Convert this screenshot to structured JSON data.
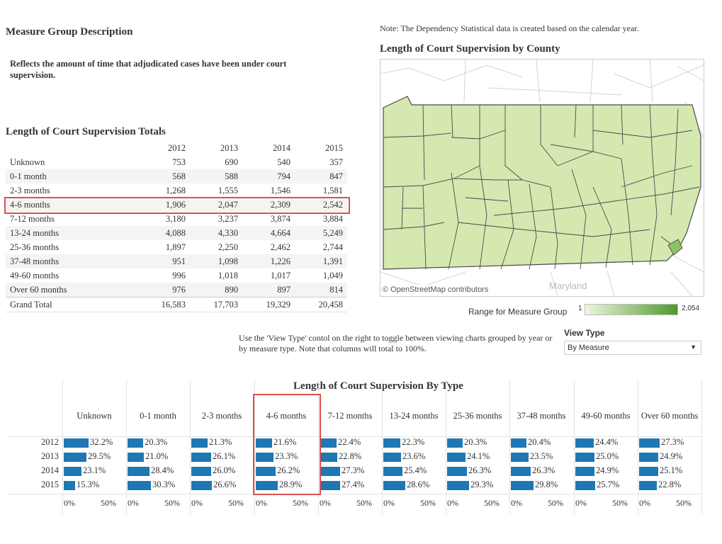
{
  "description": {
    "heading": "Measure Group Description",
    "text": "Reflects the amount of time that adjudicated cases have been under court supervision."
  },
  "note": "Note: The Dependency Statistical data is created based on the calendar year.",
  "totals": {
    "title": "Length of Court Supervision Totals",
    "years": [
      "2012",
      "2013",
      "2014",
      "2015"
    ],
    "rows": [
      {
        "label": "Unknown",
        "values": [
          "753",
          "690",
          "540",
          "357"
        ]
      },
      {
        "label": "0-1 month",
        "values": [
          "568",
          "588",
          "794",
          "847"
        ]
      },
      {
        "label": "2-3 months",
        "values": [
          "1,268",
          "1,555",
          "1,546",
          "1,581"
        ]
      },
      {
        "label": "4-6 months",
        "values": [
          "1,906",
          "2,047",
          "2,309",
          "2,542"
        ]
      },
      {
        "label": "7-12 months",
        "values": [
          "3,180",
          "3,237",
          "3,874",
          "3,884"
        ]
      },
      {
        "label": "13-24 months",
        "values": [
          "4,088",
          "4,330",
          "4,664",
          "5,249"
        ]
      },
      {
        "label": "25-36 months",
        "values": [
          "1,897",
          "2,250",
          "2,462",
          "2,744"
        ]
      },
      {
        "label": "37-48 months",
        "values": [
          "951",
          "1,098",
          "1,226",
          "1,391"
        ]
      },
      {
        "label": "49-60 months",
        "values": [
          "996",
          "1,018",
          "1,017",
          "1,049"
        ]
      },
      {
        "label": "Over 60 months",
        "values": [
          "976",
          "890",
          "897",
          "814"
        ]
      }
    ],
    "grand_total": {
      "label": "Grand Total",
      "values": [
        "16,583",
        "17,703",
        "19,329",
        "20,458"
      ]
    }
  },
  "map": {
    "title": "Length of Court Supervision by County",
    "attribution": "© OpenStreetMap contributors",
    "state_label": "Maryland",
    "legend_label": "Range for  Measure Group",
    "legend_min": "1",
    "legend_max": "2,054",
    "colors": {
      "fill": "#d4e8b0",
      "highlight": "#8cc463",
      "border": "#4a4a4a"
    }
  },
  "instructions": "Use the 'View Type' contol on the right to toggle between viewing charts grouped by year or by measure type.  Note that columns will total to 100%.",
  "view_type": {
    "label": "View Type",
    "selected": "By Measure"
  },
  "chart_data": {
    "type": "bar",
    "title": "Length of Court Supervision By Type",
    "categories": [
      "Unknown",
      "0-1 month",
      "2-3 months",
      "4-6 months",
      "7-12 months",
      "13-24 months",
      "25-36 months",
      "37-48 months",
      "49-60 months",
      "Over 60 months"
    ],
    "years": [
      "2012",
      "2013",
      "2014",
      "2015"
    ],
    "values": [
      [
        32.2,
        29.5,
        23.1,
        15.3
      ],
      [
        20.3,
        21.0,
        28.4,
        30.3
      ],
      [
        21.3,
        26.1,
        26.0,
        26.6
      ],
      [
        21.6,
        23.3,
        26.2,
        28.9
      ],
      [
        22.4,
        22.8,
        27.3,
        27.4
      ],
      [
        22.3,
        23.6,
        25.4,
        28.6
      ],
      [
        20.3,
        24.1,
        26.3,
        29.3
      ],
      [
        20.4,
        23.5,
        26.3,
        29.8
      ],
      [
        24.4,
        25.0,
        24.9,
        25.7
      ],
      [
        27.3,
        24.9,
        25.1,
        22.8
      ]
    ],
    "value_labels": [
      [
        "32.2%",
        "29.5%",
        "23.1%",
        "15.3%"
      ],
      [
        "20.3%",
        "21.0%",
        "28.4%",
        "30.3%"
      ],
      [
        "21.3%",
        "26.1%",
        "26.0%",
        "26.6%"
      ],
      [
        "21.6%",
        "23.3%",
        "26.2%",
        "28.9%"
      ],
      [
        "22.4%",
        "22.8%",
        "27.3%",
        "27.4%"
      ],
      [
        "22.3%",
        "23.6%",
        "25.4%",
        "28.6%"
      ],
      [
        "20.3%",
        "24.1%",
        "26.3%",
        "29.3%"
      ],
      [
        "20.4%",
        "23.5%",
        "26.3%",
        "29.8%"
      ],
      [
        "24.4%",
        "25.0%",
        "24.9%",
        "25.7%"
      ],
      [
        "27.3%",
        "24.9%",
        "25.1%",
        "22.8%"
      ]
    ],
    "xlim": [
      0,
      100
    ],
    "axis_ticks": [
      "0%",
      "50%"
    ],
    "bar_color": "#1f77b4",
    "highlight_color": "#d9534f"
  }
}
